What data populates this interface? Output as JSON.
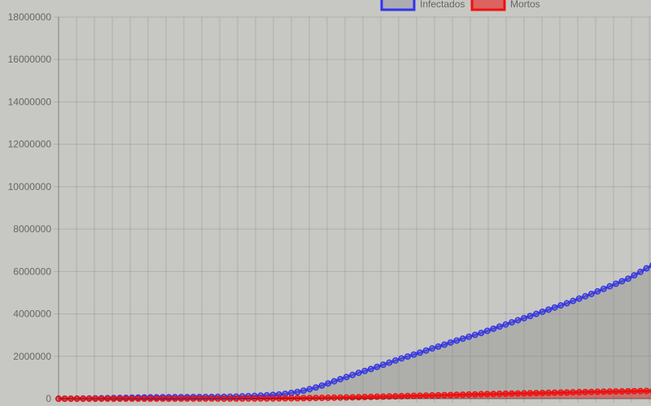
{
  "chart_data": {
    "type": "line",
    "legend_position": "top",
    "grid": true,
    "ylim": [
      0,
      18000000
    ],
    "y_ticks": [
      "0",
      "2000000",
      "4000000",
      "6000000",
      "8000000",
      "10000000",
      "12000000",
      "14000000",
      "16000000",
      "18000000"
    ],
    "series": [
      {
        "name": "Infectados",
        "color": "#3333ee",
        "fill": "rgba(130,130,125,0.35)",
        "values": [
          0,
          1000,
          3000,
          6000,
          9000,
          12000,
          16000,
          20000,
          25000,
          30000,
          36000,
          42000,
          48000,
          54000,
          60000,
          64000,
          66000,
          68000,
          70000,
          72000,
          74000,
          76000,
          78000,
          80000,
          82000,
          84000,
          86000,
          90000,
          95000,
          100000,
          110000,
          120000,
          130000,
          145000,
          160000,
          180000,
          200000,
          230000,
          270000,
          320000,
          380000,
          450000,
          530000,
          620000,
          720000,
          820000,
          920000,
          1020000,
          1120000,
          1220000,
          1310000,
          1400000,
          1500000,
          1600000,
          1700000,
          1800000,
          1900000,
          1990000,
          2080000,
          2170000,
          2270000,
          2370000,
          2460000,
          2550000,
          2650000,
          2740000,
          2830000,
          2920000,
          3010000,
          3100000,
          3200000,
          3300000,
          3400000,
          3500000,
          3600000,
          3700000,
          3800000,
          3900000,
          4000000,
          4100000,
          4200000,
          4300000,
          4400000,
          4500000,
          4610000,
          4720000,
          4830000,
          4940000,
          5060000,
          5180000,
          5300000,
          5420000,
          5540000,
          5660000,
          5820000,
          5980000,
          6150000,
          6300000
        ]
      },
      {
        "name": "Mortos",
        "color": "#ee1111",
        "fill": "rgba(238,17,17,0.4)",
        "values": [
          0,
          0,
          0,
          0,
          0,
          0,
          0,
          500,
          1000,
          1500,
          2000,
          2500,
          3000,
          3500,
          4000,
          4000,
          4000,
          4000,
          4000,
          4000,
          4000,
          4500,
          5000,
          5000,
          5000,
          5000,
          5000,
          5000,
          6000,
          7000,
          8000,
          9000,
          10000,
          11000,
          12000,
          14000,
          16000,
          18000,
          20000,
          23000,
          26000,
          30000,
          34000,
          38000,
          43000,
          48000,
          53000,
          59000,
          65000,
          71000,
          78000,
          85000,
          92000,
          99000,
          106000,
          113000,
          120000,
          127000,
          134000,
          141000,
          148000,
          155000,
          162000,
          169000,
          176000,
          183000,
          190000,
          197000,
          204000,
          211000,
          218000,
          224000,
          230000,
          236000,
          242000,
          248000,
          254000,
          260000,
          266000,
          272000,
          278000,
          284000,
          290000,
          296000,
          302000,
          308000,
          314000,
          320000,
          326000,
          332000,
          337000,
          342000,
          347000,
          352000,
          356000,
          360000,
          364000,
          368000
        ]
      }
    ]
  }
}
